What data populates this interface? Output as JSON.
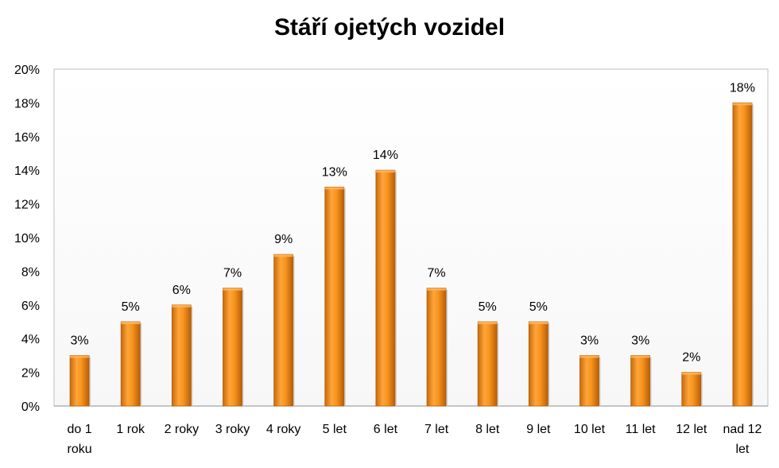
{
  "chart_data": {
    "type": "bar",
    "title": "Stáří ojetých vozidel",
    "categories": [
      "do 1 roku",
      "1 rok",
      "2 roky",
      "3 roky",
      "4 roky",
      "5 let",
      "6 let",
      "7 let",
      "8 let",
      "9 let",
      "10 let",
      "11 let",
      "12 let",
      "nad 12 let"
    ],
    "category_lines": [
      [
        "do 1",
        "roku"
      ],
      [
        "1 rok"
      ],
      [
        "2 roky"
      ],
      [
        "3 roky"
      ],
      [
        "4 roky"
      ],
      [
        "5 let"
      ],
      [
        "6 let"
      ],
      [
        "7 let"
      ],
      [
        "8 let"
      ],
      [
        "9 let"
      ],
      [
        "10 let"
      ],
      [
        "11 let"
      ],
      [
        "12 let"
      ],
      [
        "nad 12",
        "let"
      ]
    ],
    "values": [
      3,
      5,
      6,
      7,
      9,
      13,
      14,
      7,
      5,
      5,
      3,
      3,
      2,
      18
    ],
    "data_labels": [
      "3%",
      "5%",
      "6%",
      "7%",
      "9%",
      "13%",
      "14%",
      "7%",
      "5%",
      "5%",
      "3%",
      "3%",
      "2%",
      "18%"
    ],
    "yticks": [
      "0%",
      "2%",
      "4%",
      "6%",
      "8%",
      "10%",
      "12%",
      "14%",
      "16%",
      "18%",
      "20%"
    ],
    "ylim": [
      0,
      20
    ],
    "xlabel": "",
    "ylabel": "",
    "bar_color": "#F7941D",
    "grid": false
  }
}
